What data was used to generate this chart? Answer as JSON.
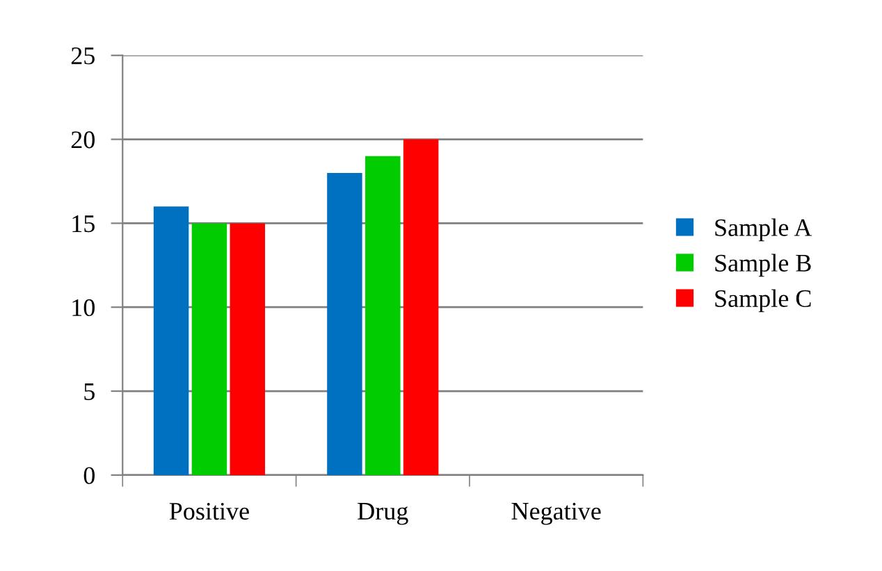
{
  "chart_data": {
    "type": "bar",
    "categories": [
      "Positive",
      "Drug",
      "Negative"
    ],
    "series": [
      {
        "name": "Sample A",
        "color": "#0070c0",
        "values": [
          16,
          18,
          0
        ]
      },
      {
        "name": "Sample B",
        "color": "#00cc00",
        "values": [
          15,
          19,
          0
        ]
      },
      {
        "name": "Sample C",
        "color": "#ff0000",
        "values": [
          15,
          20,
          0
        ]
      }
    ],
    "ylim": [
      0,
      25
    ],
    "yticks": [
      0,
      5,
      10,
      15,
      20,
      25
    ],
    "grid": "y",
    "legend": "right"
  }
}
